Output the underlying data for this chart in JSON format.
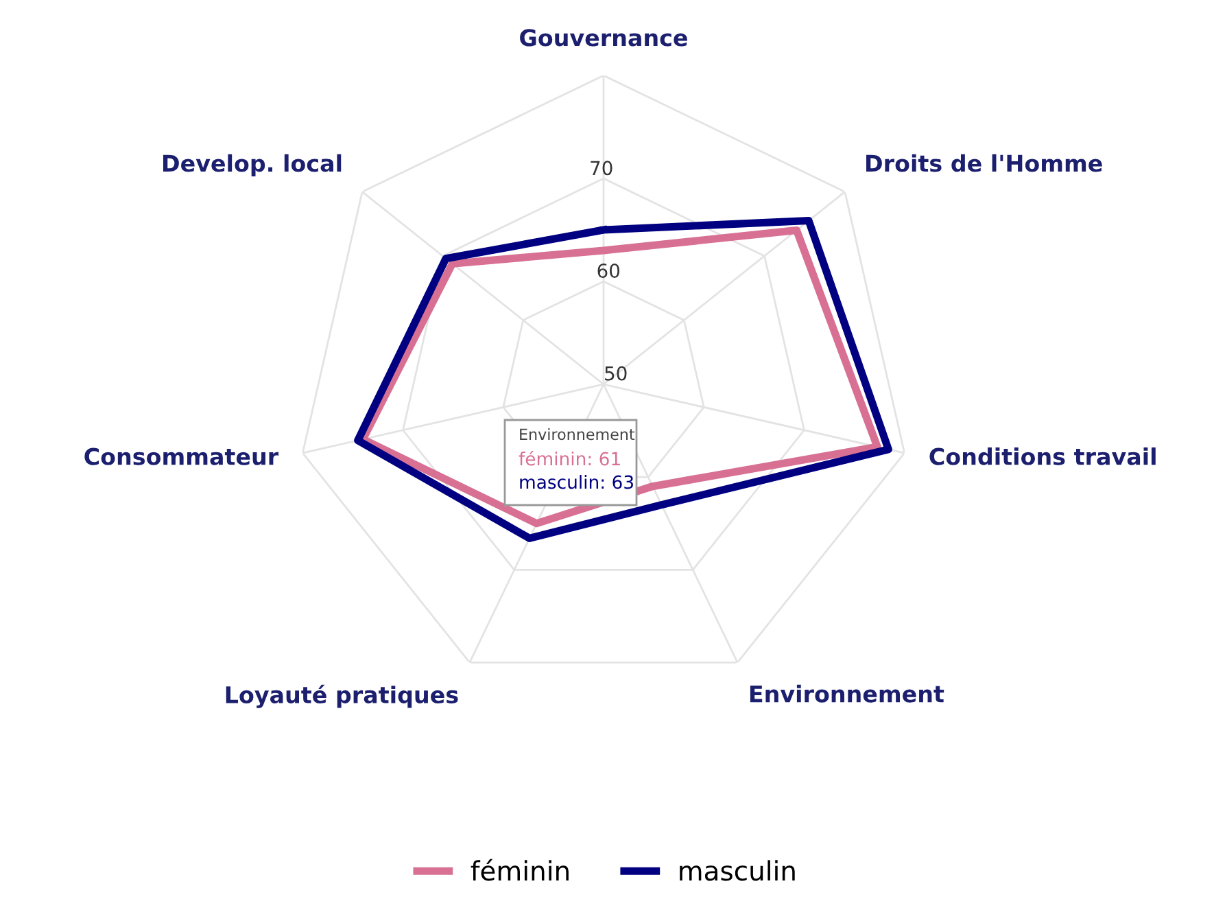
{
  "chart_data": {
    "type": "radar",
    "categories": [
      "Gouvernance",
      "Droits de l'Homme",
      "Conditions travail",
      "Environnement",
      "Loyauté pratiques",
      "Consommateur",
      "Develop. local"
    ],
    "series": [
      {
        "name": "féminin",
        "color": "#d87093",
        "values": [
          63,
          74,
          77.3,
          61,
          65,
          74,
          68.8
        ]
      },
      {
        "name": "masculin",
        "color": "#000080",
        "values": [
          65,
          75.5,
          78.4,
          63,
          66.6,
          74.5,
          69.6
        ]
      }
    ],
    "ylim": [
      50,
      80
    ],
    "yticks": [
      50,
      60,
      70
    ],
    "grid": true,
    "legend": "bottom",
    "marker": "none",
    "line_style": "solid",
    "annotations": [
      "Environnement",
      "féminin: 61",
      "masculin: 63"
    ]
  }
}
